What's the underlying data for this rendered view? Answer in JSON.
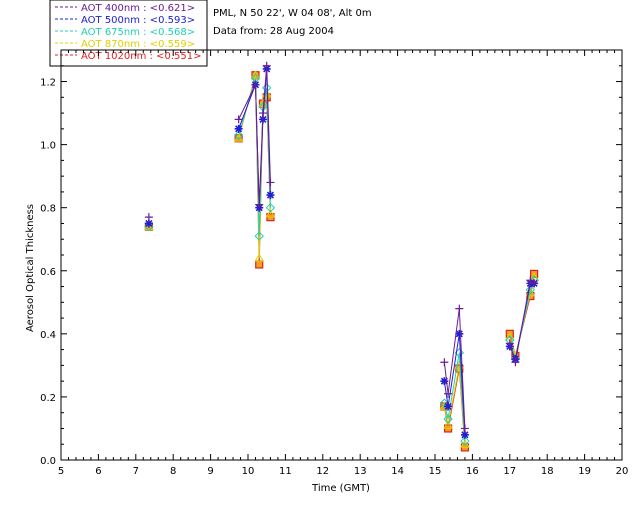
{
  "chart_data": {
    "type": "scatter",
    "title": "PML, N 50 22', W 04 08', Alt 0m",
    "subtitle": "Data from: 28 Aug 2004",
    "xlabel": "Time (GMT)",
    "ylabel": "Aerosol Optical Thickness",
    "xlim": [
      5,
      20
    ],
    "ylim": [
      0.0,
      1.3
    ],
    "xticks": [
      "5",
      "6",
      "7",
      "8",
      "9",
      "10",
      "11",
      "12",
      "13",
      "14",
      "15",
      "16",
      "17",
      "18",
      "19",
      "20"
    ],
    "yticks": [
      "0.0",
      "0.2",
      "0.4",
      "0.6",
      "0.8",
      "1.0",
      "1.2"
    ],
    "legend_position": "top-left outside",
    "series": [
      {
        "name": "AOT  400nm : <0.621>",
        "color": "#6a1a9a",
        "marker": "plus",
        "x": [
          7.35,
          9.75,
          10.2,
          10.3,
          10.4,
          10.5,
          10.6,
          15.25,
          15.35,
          15.65,
          15.8,
          17.0,
          17.15,
          17.55,
          17.65
        ],
        "y": [
          0.77,
          1.08,
          1.19,
          0.81,
          1.1,
          1.25,
          0.88,
          0.31,
          0.21,
          0.48,
          0.1,
          0.37,
          0.31,
          0.57,
          0.56
        ]
      },
      {
        "name": "AOT  500nm : <0.593>",
        "color": "#2020d0",
        "marker": "asterisk",
        "x": [
          7.35,
          9.75,
          10.2,
          10.3,
          10.4,
          10.5,
          10.6,
          15.25,
          15.35,
          15.65,
          15.8,
          17.0,
          17.15,
          17.55,
          17.65
        ],
        "y": [
          0.75,
          1.05,
          1.19,
          0.8,
          1.08,
          1.24,
          0.84,
          0.25,
          0.17,
          0.4,
          0.08,
          0.36,
          0.32,
          0.56,
          0.56
        ]
      },
      {
        "name": "AOT  675nm : <0.568>",
        "color": "#20d0b0",
        "marker": "diamond",
        "x": [
          7.35,
          9.75,
          10.2,
          10.3,
          10.4,
          10.5,
          10.6,
          15.25,
          15.35,
          15.65,
          15.8,
          17.0,
          17.15,
          17.55,
          17.65
        ],
        "y": [
          0.74,
          1.03,
          1.21,
          0.71,
          1.12,
          1.18,
          0.8,
          0.18,
          0.13,
          0.34,
          0.06,
          0.38,
          0.32,
          0.54,
          0.57
        ]
      },
      {
        "name": "AOT  870nm : <0.559>",
        "color": "#e0d000",
        "marker": "triangle",
        "x": [
          7.35,
          9.75,
          10.2,
          10.3,
          10.4,
          10.5,
          10.6,
          15.25,
          15.35,
          15.65,
          15.8,
          17.0,
          17.15,
          17.55,
          17.65
        ],
        "y": [
          0.74,
          1.02,
          1.22,
          0.64,
          1.13,
          1.16,
          0.78,
          0.17,
          0.11,
          0.3,
          0.05,
          0.39,
          0.33,
          0.53,
          0.58
        ]
      },
      {
        "name": "AOT 1020nm : <0.551>",
        "color": "#e02020",
        "marker": "square",
        "x": [
          7.35,
          9.75,
          10.2,
          10.3,
          10.4,
          10.5,
          10.6,
          15.25,
          15.35,
          15.65,
          15.8,
          17.0,
          17.15,
          17.55,
          17.65
        ],
        "y": [
          0.74,
          1.02,
          1.22,
          0.62,
          1.13,
          1.15,
          0.77,
          0.17,
          0.1,
          0.29,
          0.04,
          0.4,
          0.33,
          0.52,
          0.59
        ]
      }
    ]
  }
}
